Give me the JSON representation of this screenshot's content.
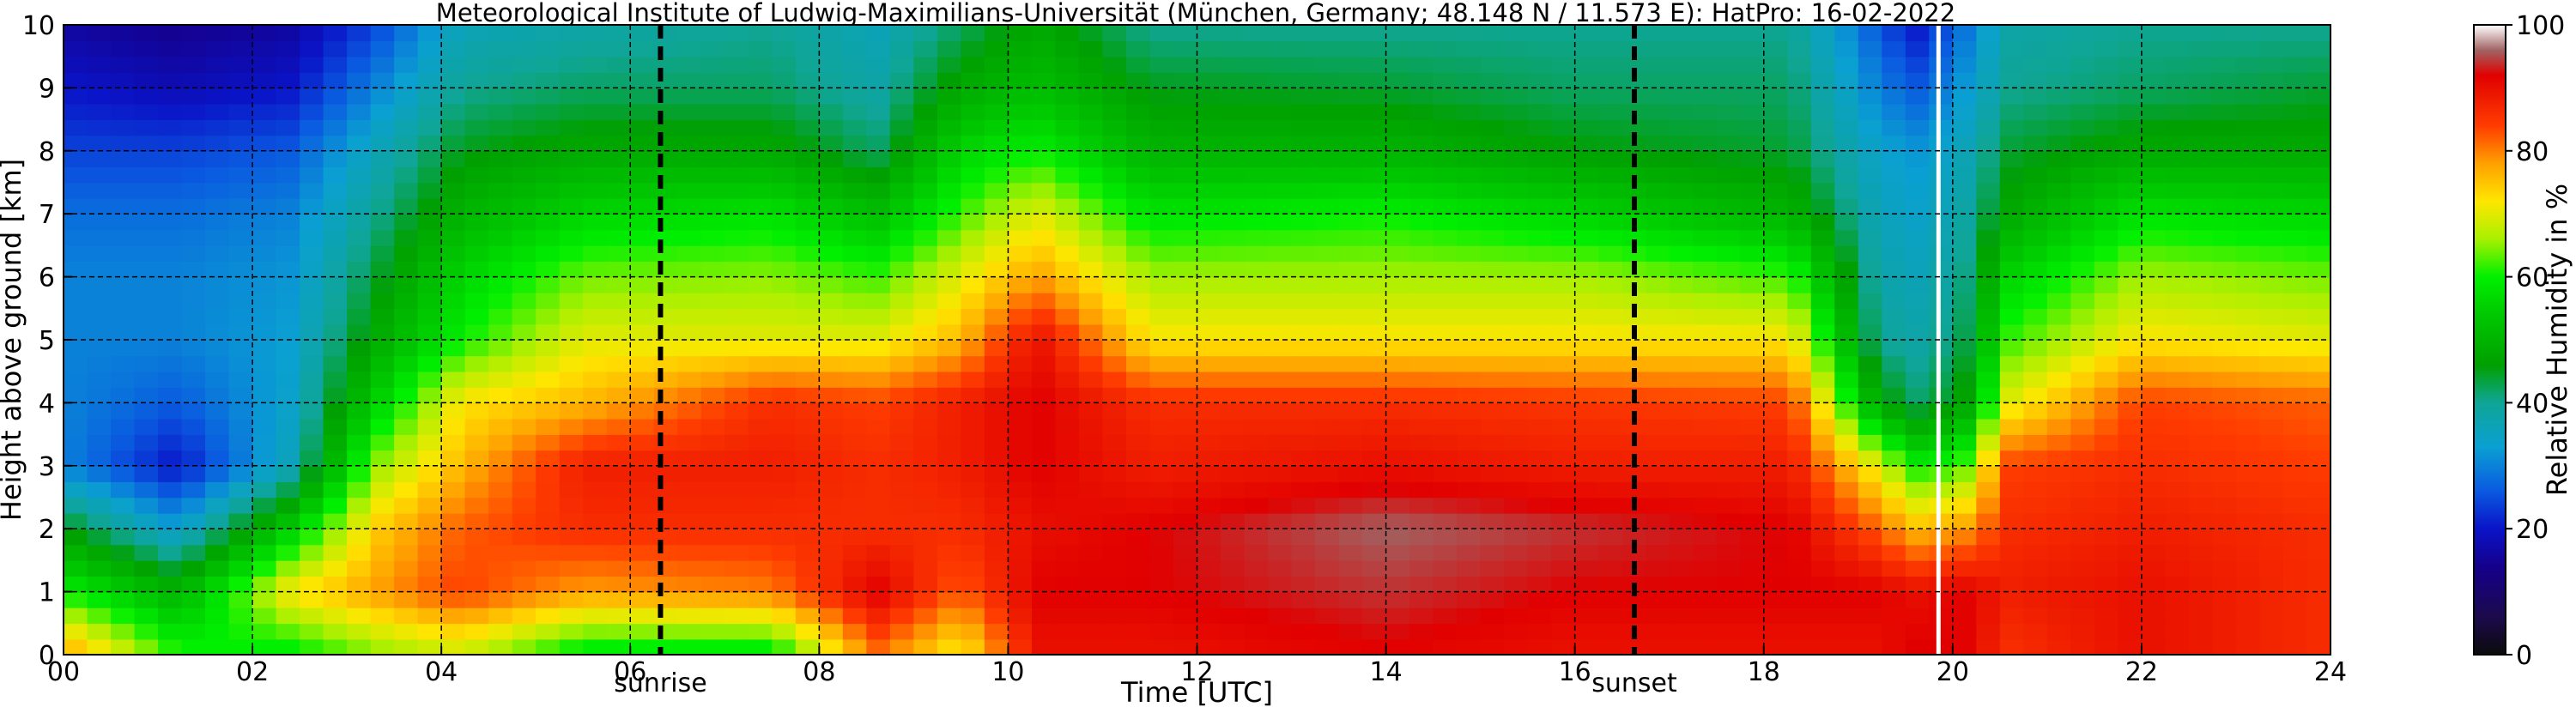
{
  "chart_data": {
    "type": "heatmap",
    "title": "Meteorological Institute of Ludwig-Maximilians-Universität (München, Germany; 48.148 N / 11.573 E):    HatPro: 16-02-2022",
    "xlabel": "Time [UTC]",
    "ylabel": "Height above ground [km]",
    "xlim": [
      0,
      24
    ],
    "ylim": [
      0,
      10
    ],
    "x_ticks": [
      "00",
      "02",
      "04",
      "06",
      "08",
      "10",
      "12",
      "14",
      "16",
      "18",
      "20",
      "22",
      "24"
    ],
    "y_ticks": [
      "0",
      "1",
      "2",
      "3",
      "4",
      "5",
      "6",
      "7",
      "8",
      "9",
      "10"
    ],
    "grid": true,
    "colorbar": {
      "label": "Relative Humidity in %",
      "range": [
        0,
        100
      ],
      "ticks": [
        "0",
        "20",
        "40",
        "60",
        "80",
        "100"
      ],
      "stops": [
        {
          "value": 0,
          "color": "#0b0b0b"
        },
        {
          "value": 6,
          "color": "#1c0a4c"
        },
        {
          "value": 14,
          "color": "#15008c"
        },
        {
          "value": 20,
          "color": "#0a14c8"
        },
        {
          "value": 26,
          "color": "#0a5ae0"
        },
        {
          "value": 33,
          "color": "#0aa0d2"
        },
        {
          "value": 40,
          "color": "#0fa596"
        },
        {
          "value": 46,
          "color": "#00a000"
        },
        {
          "value": 54,
          "color": "#00c800"
        },
        {
          "value": 60,
          "color": "#00f000"
        },
        {
          "value": 66,
          "color": "#a8f000"
        },
        {
          "value": 72,
          "color": "#ffe600"
        },
        {
          "value": 78,
          "color": "#ffa000"
        },
        {
          "value": 84,
          "color": "#ff3c00"
        },
        {
          "value": 92,
          "color": "#e10000"
        },
        {
          "value": 96,
          "color": "#a06464"
        },
        {
          "value": 100,
          "color": "#ffffff"
        }
      ]
    },
    "markers": [
      {
        "label": "sunrise",
        "x": 6.32
      },
      {
        "label": "sunset",
        "x": 16.63
      }
    ],
    "gaps": [
      19.85
    ],
    "rh_profiles": {
      "heights_km": [
        0.15,
        1.0,
        2.0,
        3.0,
        4.0,
        5.0,
        6.0,
        7.0,
        8.0,
        9.0,
        10.0
      ],
      "profiles": [
        {
          "t": 0.0,
          "rh": [
            76,
            60,
            46,
            30,
            30,
            30,
            30,
            28,
            24,
            20,
            16
          ]
        },
        {
          "t": 1.2,
          "rh": [
            60,
            50,
            33,
            20,
            26,
            30,
            30,
            28,
            24,
            18,
            14
          ]
        },
        {
          "t": 2.4,
          "rh": [
            60,
            72,
            55,
            36,
            34,
            33,
            32,
            30,
            26,
            20,
            16
          ]
        },
        {
          "t": 3.3,
          "rh": [
            66,
            78,
            74,
            65,
            55,
            48,
            44,
            40,
            36,
            30,
            24
          ]
        },
        {
          "t": 4.2,
          "rh": [
            70,
            84,
            82,
            76,
            72,
            60,
            56,
            50,
            45,
            40,
            36
          ]
        },
        {
          "t": 5.5,
          "rh": [
            60,
            78,
            86,
            88,
            76,
            70,
            64,
            56,
            48,
            42,
            38
          ]
        },
        {
          "t": 7.5,
          "rh": [
            60,
            80,
            86,
            88,
            86,
            70,
            65,
            58,
            48,
            42,
            40
          ]
        },
        {
          "t": 8.6,
          "rh": [
            82,
            92,
            86,
            86,
            84,
            70,
            62,
            52,
            42,
            38,
            36
          ]
        },
        {
          "t": 9.5,
          "rh": [
            72,
            82,
            86,
            88,
            88,
            76,
            70,
            62,
            56,
            48,
            42
          ]
        },
        {
          "t": 10.3,
          "rh": [
            90,
            92,
            90,
            92,
            92,
            90,
            78,
            70,
            60,
            52,
            48
          ]
        },
        {
          "t": 11.5,
          "rh": [
            90,
            92,
            92,
            88,
            86,
            72,
            66,
            58,
            50,
            45,
            40
          ]
        },
        {
          "t": 14.0,
          "rh": [
            92,
            94,
            96,
            90,
            86,
            72,
            66,
            60,
            50,
            44,
            40
          ]
        },
        {
          "t": 16.0,
          "rh": [
            90,
            92,
            94,
            88,
            85,
            72,
            66,
            56,
            46,
            42,
            40
          ]
        },
        {
          "t": 18.3,
          "rh": [
            90,
            92,
            92,
            88,
            84,
            72,
            62,
            50,
            44,
            42,
            40
          ]
        },
        {
          "t": 19.2,
          "rh": [
            90,
            92,
            82,
            70,
            48,
            40,
            38,
            36,
            34,
            30,
            26
          ]
        },
        {
          "t": 19.6,
          "rh": [
            92,
            90,
            76,
            60,
            42,
            38,
            36,
            34,
            32,
            26,
            20
          ]
        },
        {
          "t": 20.1,
          "rh": [
            92,
            92,
            78,
            62,
            46,
            42,
            40,
            38,
            36,
            32,
            28
          ]
        },
        {
          "t": 20.6,
          "rh": [
            86,
            88,
            86,
            84,
            70,
            62,
            56,
            48,
            44,
            40,
            38
          ]
        },
        {
          "t": 22.0,
          "rh": [
            90,
            90,
            88,
            86,
            84,
            72,
            66,
            58,
            48,
            42,
            40
          ]
        },
        {
          "t": 24.0,
          "rh": [
            86,
            86,
            86,
            84,
            82,
            70,
            64,
            56,
            48,
            44,
            40
          ]
        }
      ]
    }
  }
}
